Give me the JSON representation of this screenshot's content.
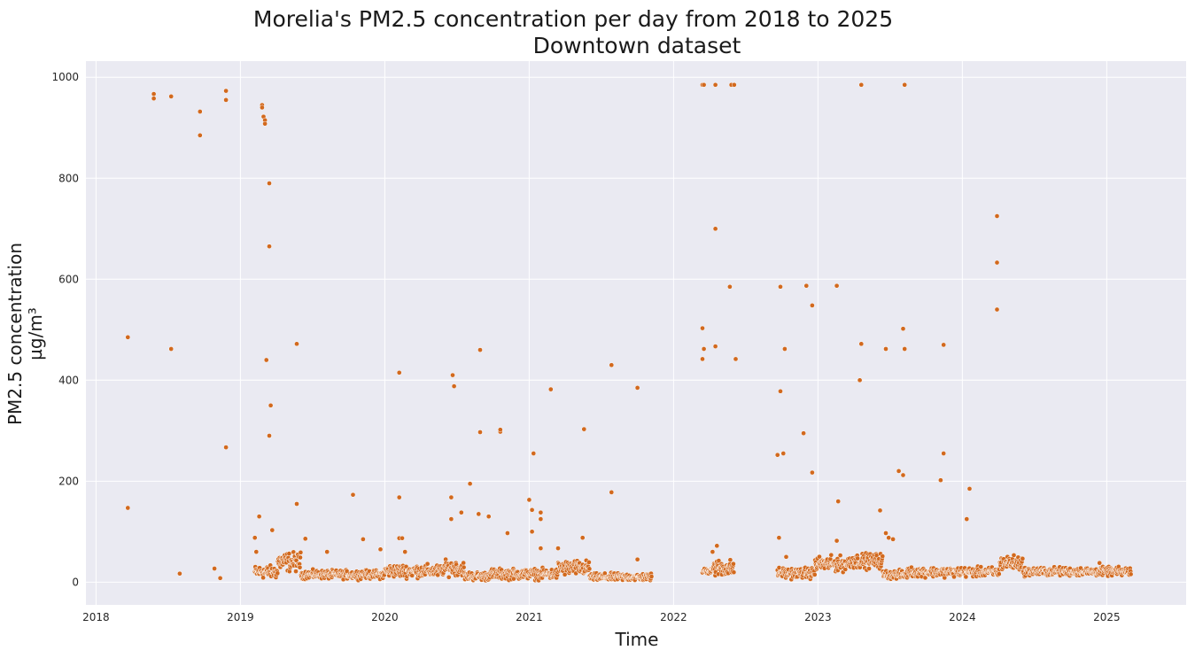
{
  "chart_data": {
    "type": "scatter",
    "title_line1": "Morelia's PM2.5 concentration per day from 2018 to 2025",
    "title_line2": "Downtown dataset",
    "xlabel": "Time",
    "ylabel_line1": "PM2.5 concentration",
    "ylabel_line2": "µg/m³",
    "x_ticks": [
      "2018",
      "2019",
      "2020",
      "2021",
      "2022",
      "2023",
      "2024",
      "2025"
    ],
    "y_ticks": [
      0,
      200,
      400,
      600,
      800,
      1000
    ],
    "xlim": [
      2017.93,
      2025.55
    ],
    "ylim": [
      -45,
      1032
    ],
    "grid": true,
    "colors": {
      "background": "#eaeaf2",
      "grid": "#ffffff",
      "point": "#d2691e",
      "point_edge": "#ffffff"
    },
    "outliers": [
      [
        2018.22,
        485
      ],
      [
        2018.22,
        147
      ],
      [
        2018.4,
        967
      ],
      [
        2018.4,
        958
      ],
      [
        2018.52,
        962
      ],
      [
        2018.52,
        462
      ],
      [
        2018.58,
        17
      ],
      [
        2018.72,
        932
      ],
      [
        2018.72,
        885
      ],
      [
        2018.82,
        27
      ],
      [
        2018.86,
        8
      ],
      [
        2018.9,
        973
      ],
      [
        2018.9,
        955
      ],
      [
        2018.9,
        267
      ],
      [
        2019.1,
        88
      ],
      [
        2019.11,
        60
      ],
      [
        2019.13,
        130
      ],
      [
        2019.15,
        945
      ],
      [
        2019.15,
        940
      ],
      [
        2019.16,
        922
      ],
      [
        2019.17,
        915
      ],
      [
        2019.17,
        908
      ],
      [
        2019.18,
        440
      ],
      [
        2019.2,
        790
      ],
      [
        2019.2,
        665
      ],
      [
        2019.21,
        350
      ],
      [
        2019.2,
        290
      ],
      [
        2019.22,
        103
      ],
      [
        2019.39,
        472
      ],
      [
        2019.39,
        155
      ],
      [
        2019.45,
        86
      ],
      [
        2019.6,
        60
      ],
      [
        2019.78,
        173
      ],
      [
        2019.85,
        85
      ],
      [
        2019.97,
        65
      ],
      [
        2020.1,
        415
      ],
      [
        2020.1,
        168
      ],
      [
        2020.1,
        87
      ],
      [
        2020.12,
        87
      ],
      [
        2020.14,
        60
      ],
      [
        2020.46,
        168
      ],
      [
        2020.46,
        125
      ],
      [
        2020.47,
        410
      ],
      [
        2020.48,
        388
      ],
      [
        2020.53,
        138
      ],
      [
        2020.59,
        195
      ],
      [
        2020.65,
        135
      ],
      [
        2020.66,
        460
      ],
      [
        2020.66,
        297
      ],
      [
        2020.72,
        130
      ],
      [
        2020.8,
        298
      ],
      [
        2020.8,
        302
      ],
      [
        2020.85,
        97
      ],
      [
        2021.0,
        163
      ],
      [
        2021.02,
        143
      ],
      [
        2021.02,
        100
      ],
      [
        2021.03,
        255
      ],
      [
        2021.08,
        138
      ],
      [
        2021.08,
        125
      ],
      [
        2021.08,
        67
      ],
      [
        2021.15,
        382
      ],
      [
        2021.2,
        67
      ],
      [
        2021.37,
        88
      ],
      [
        2021.38,
        303
      ],
      [
        2021.57,
        430
      ],
      [
        2021.57,
        178
      ],
      [
        2021.75,
        385
      ],
      [
        2021.75,
        45
      ],
      [
        2022.2,
        985
      ],
      [
        2022.21,
        985
      ],
      [
        2022.29,
        985
      ],
      [
        2022.4,
        985
      ],
      [
        2022.42,
        985
      ],
      [
        2022.2,
        503
      ],
      [
        2022.21,
        462
      ],
      [
        2022.2,
        442
      ],
      [
        2022.29,
        700
      ],
      [
        2022.29,
        467
      ],
      [
        2022.39,
        585
      ],
      [
        2022.43,
        442
      ],
      [
        2022.27,
        60
      ],
      [
        2022.3,
        72
      ],
      [
        2022.74,
        585
      ],
      [
        2022.74,
        378
      ],
      [
        2022.72,
        252
      ],
      [
        2022.76,
        255
      ],
      [
        2022.77,
        462
      ],
      [
        2022.73,
        88
      ],
      [
        2022.78,
        50
      ],
      [
        2022.92,
        587
      ],
      [
        2022.9,
        295
      ],
      [
        2022.96,
        548
      ],
      [
        2022.96,
        217
      ],
      [
        2023.13,
        587
      ],
      [
        2023.14,
        160
      ],
      [
        2023.13,
        82
      ],
      [
        2023.3,
        985
      ],
      [
        2023.3,
        472
      ],
      [
        2023.29,
        400
      ],
      [
        2023.43,
        142
      ],
      [
        2023.47,
        462
      ],
      [
        2023.47,
        97
      ],
      [
        2023.49,
        88
      ],
      [
        2023.52,
        85
      ],
      [
        2023.6,
        985
      ],
      [
        2023.59,
        502
      ],
      [
        2023.6,
        462
      ],
      [
        2023.56,
        220
      ],
      [
        2023.59,
        212
      ],
      [
        2023.85,
        202
      ],
      [
        2023.87,
        470
      ],
      [
        2023.87,
        255
      ],
      [
        2024.03,
        125
      ],
      [
        2024.05,
        185
      ],
      [
        2024.24,
        725
      ],
      [
        2024.24,
        633
      ],
      [
        2024.24,
        540
      ],
      [
        2024.95,
        38
      ]
    ]
  }
}
